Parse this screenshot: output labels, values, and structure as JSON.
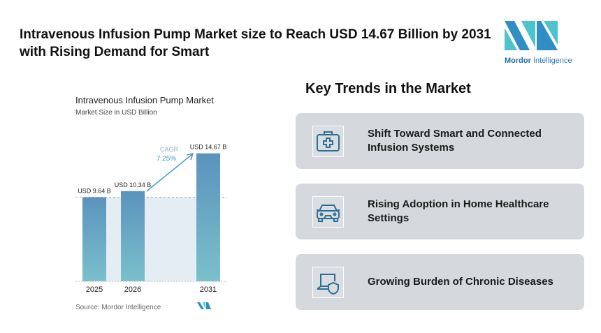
{
  "header": {
    "title": "Intravenous Infusion Pump Market size to Reach USD 14.67 Billion by 2031 with Rising Demand for Smart",
    "logo_text_bold": "Mordor",
    "logo_text": " Intelligence"
  },
  "chart_data": {
    "type": "bar",
    "title": "Intravenous Infusion Pump Market",
    "subtitle": "Market Size in USD Billion",
    "categories": [
      "2025",
      "2026",
      "2031"
    ],
    "values": [
      9.64,
      10.34,
      14.67
    ],
    "data_labels": [
      "USD 9.64 B",
      "USD 10.34 B",
      "USD 14.67 B"
    ],
    "cagr_label": "CAGR",
    "cagr_value": "7.25%",
    "source": "Source:  Mordor Intelligence",
    "ylim": [
      0,
      16
    ],
    "grid": false,
    "colors": {
      "bar_top": "#5a93bd",
      "bar_bottom": "#7bc0cc",
      "cagr": "#4a9ac8",
      "band": "#e3edf3"
    }
  },
  "trends": {
    "title": "Key Trends in the Market",
    "items": [
      {
        "label": "Shift Toward Smart and Connected Infusion Systems",
        "icon": "medical-kit-icon"
      },
      {
        "label": "Rising Adoption in Home Healthcare Settings",
        "icon": "car-icon"
      },
      {
        "label": "Growing Burden of Chronic Diseases",
        "icon": "laptop-shield-icon"
      }
    ]
  }
}
